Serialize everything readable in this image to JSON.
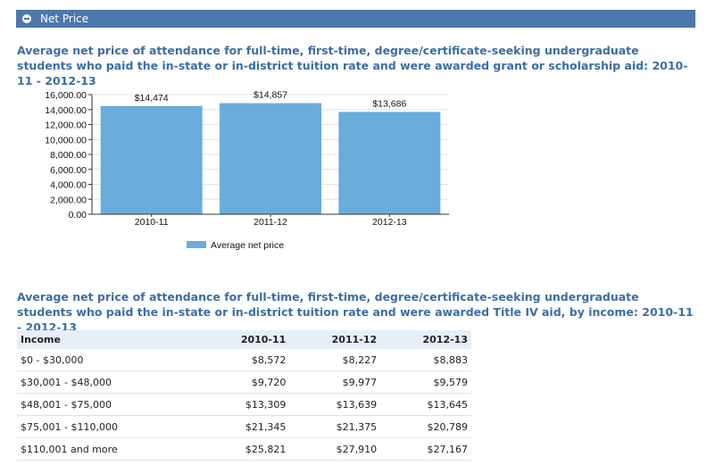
{
  "section": {
    "title": "Net Price"
  },
  "chart_heading": "Average net price of attendance for full-time, first-time, degree/certificate-seeking undergraduate students who paid the in-state or in-district tuition rate and were awarded grant or scholarship aid: 2010-11 - 2012-13",
  "table_heading": "Average net price of attendance for full-time, first-time, degree/certificate-seeking undergraduate students who paid the in-state or in-district tuition rate and were awarded Title IV aid, by income: 2010-11 - 2012-13",
  "colors": {
    "bar": "#6aacdc",
    "header_bar": "#4d78ad",
    "heading": "#3a6ea5"
  },
  "chart_data": {
    "type": "bar",
    "categories": [
      "2010-11",
      "2011-12",
      "2012-13"
    ],
    "series": [
      {
        "name": "Average net price",
        "values": [
          14474,
          14857,
          13686
        ],
        "labels": [
          "$14,474",
          "$14,857",
          "$13,686"
        ]
      }
    ],
    "ylim": [
      0,
      16000
    ],
    "yticks": [
      0,
      2000,
      4000,
      6000,
      8000,
      10000,
      12000,
      14000,
      16000
    ],
    "ytick_labels": [
      "0.00",
      "2,000.00",
      "4,000.00",
      "6,000.00",
      "8,000.00",
      "10,000.00",
      "12,000.00",
      "14,000.00",
      "16,000.00"
    ],
    "grid": true,
    "legend_position": "bottom"
  },
  "table": {
    "headers": [
      "Income",
      "2010-11",
      "2011-12",
      "2012-13"
    ],
    "rows": [
      [
        "$0 - $30,000",
        "$8,572",
        "$8,227",
        "$8,883"
      ],
      [
        "$30,001 - $48,000",
        "$9,720",
        "$9,977",
        "$9,579"
      ],
      [
        "$48,001 - $75,000",
        "$13,309",
        "$13,639",
        "$13,645"
      ],
      [
        "$75,001 - $110,000",
        "$21,345",
        "$21,375",
        "$20,789"
      ],
      [
        "$110,001 and more",
        "$25,821",
        "$27,910",
        "$27,167"
      ]
    ]
  }
}
